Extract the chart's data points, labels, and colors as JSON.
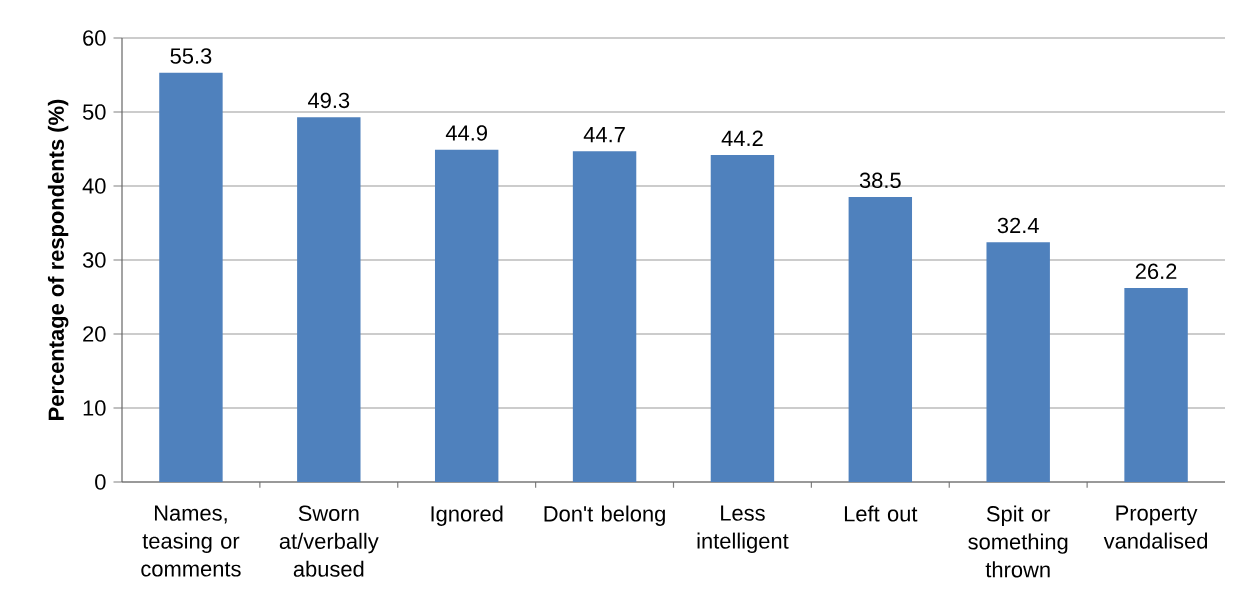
{
  "chart_data": {
    "type": "bar",
    "ylabel": "Percentage of respondents (%)",
    "categories": [
      "Names, teasing or comments",
      "Sworn at/verbally abused",
      "Ignored",
      "Don't belong",
      "Less intelligent",
      "Left out",
      "Spit or something thrown",
      "Property vandalised"
    ],
    "values": [
      55.3,
      49.3,
      44.9,
      44.7,
      44.2,
      38.5,
      32.4,
      26.2
    ],
    "color": "#4f81bd",
    "ylim": [
      0,
      60
    ],
    "yticks": [
      0,
      10,
      20,
      30,
      40,
      50,
      60
    ],
    "grid": "y",
    "data_labels": true
  }
}
